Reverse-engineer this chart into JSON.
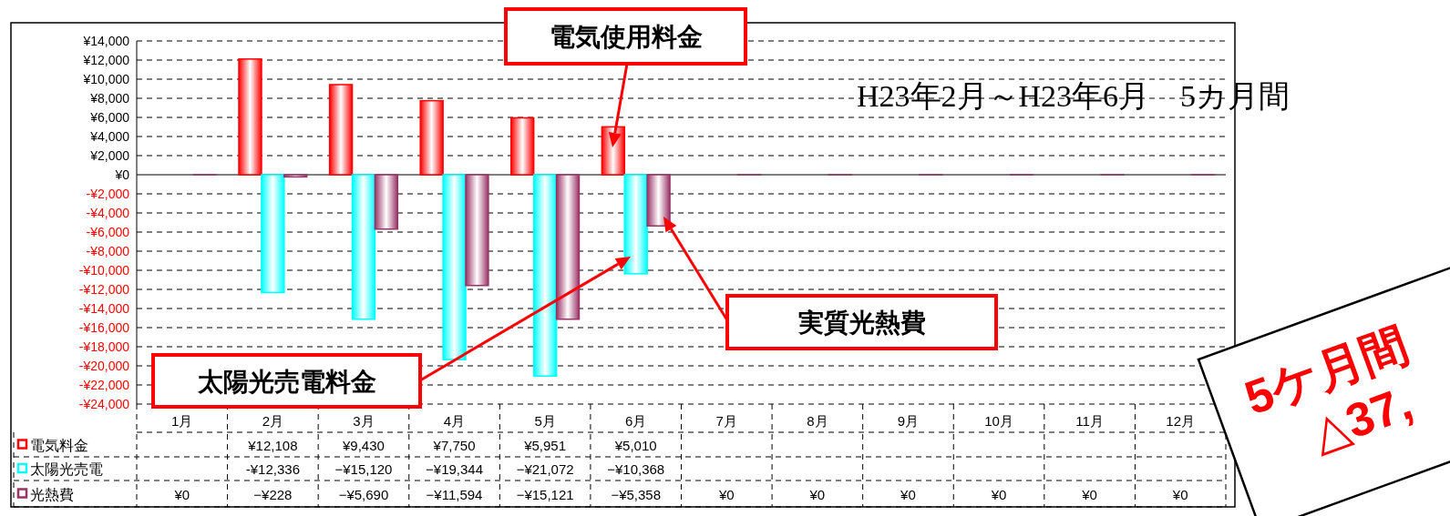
{
  "chart_data": {
    "type": "bar",
    "title": "H23年2月～H23年6月　5カ月間",
    "categories": [
      "1月",
      "2月",
      "3月",
      "4月",
      "5月",
      "6月",
      "7月",
      "8月",
      "9月",
      "10月",
      "11月",
      "12月"
    ],
    "series": [
      {
        "name": "電気料金",
        "color": "#ff0000",
        "values": [
          null,
          12108,
          9430,
          7750,
          5951,
          5010,
          null,
          null,
          null,
          null,
          null,
          null
        ],
        "value_labels": [
          null,
          "¥12,108",
          "¥9,430",
          "¥7,750",
          "¥5,951",
          "¥5,010",
          null,
          null,
          null,
          null,
          null,
          null
        ]
      },
      {
        "name": "太陽光売電",
        "color": "#00ffff",
        "values": [
          null,
          -12336,
          -15120,
          -19344,
          -21072,
          -10368,
          null,
          null,
          null,
          null,
          null,
          null
        ],
        "value_labels": [
          null,
          "-¥12,336",
          "−¥15,120",
          "−¥19,344",
          "−¥21,072",
          "−¥10,368",
          null,
          null,
          null,
          null,
          null,
          null
        ]
      },
      {
        "name": "光熱費",
        "color": "#993366",
        "values": [
          0,
          -228,
          -5690,
          -11594,
          -15121,
          -5358,
          0,
          0,
          0,
          0,
          0,
          0
        ],
        "value_labels": [
          "¥0",
          "−¥228",
          "−¥5,690",
          "−¥11,594",
          "−¥15,121",
          "−¥5,358",
          "¥0",
          "¥0",
          "¥0",
          "¥0",
          "¥0",
          "¥0"
        ]
      }
    ],
    "ylim": [
      -24000,
      14000
    ],
    "yticks": [
      {
        "value": -24000,
        "label": "-¥24,000"
      },
      {
        "value": -22000,
        "label": "-¥22,000"
      },
      {
        "value": -20000,
        "label": "-¥20,000"
      },
      {
        "value": -18000,
        "label": "-¥18,000"
      },
      {
        "value": -16000,
        "label": "-¥16,000"
      },
      {
        "value": -14000,
        "label": "-¥14,000"
      },
      {
        "value": -12000,
        "label": "-¥12,000"
      },
      {
        "value": -10000,
        "label": "-¥10,000"
      },
      {
        "value": -8000,
        "label": "-¥8,000"
      },
      {
        "value": -6000,
        "label": "-¥6,000"
      },
      {
        "value": -4000,
        "label": "-¥4,000"
      },
      {
        "value": -2000,
        "label": "-¥2,000"
      },
      {
        "value": 0,
        "label": "¥0"
      },
      {
        "value": 2000,
        "label": "¥2,000"
      },
      {
        "value": 4000,
        "label": "¥4,000"
      },
      {
        "value": 6000,
        "label": "¥6,000"
      },
      {
        "value": 8000,
        "label": "¥8,000"
      },
      {
        "value": 10000,
        "label": "¥10,000"
      },
      {
        "value": 12000,
        "label": "¥12,000"
      },
      {
        "value": 14000,
        "label": "¥14,000"
      }
    ],
    "grid": "y",
    "legend": "bottom",
    "annotations": [
      "電気使用料金",
      "太陽光売電料金",
      "実質光熱費",
      "5ケ月間",
      "△37,"
    ]
  }
}
